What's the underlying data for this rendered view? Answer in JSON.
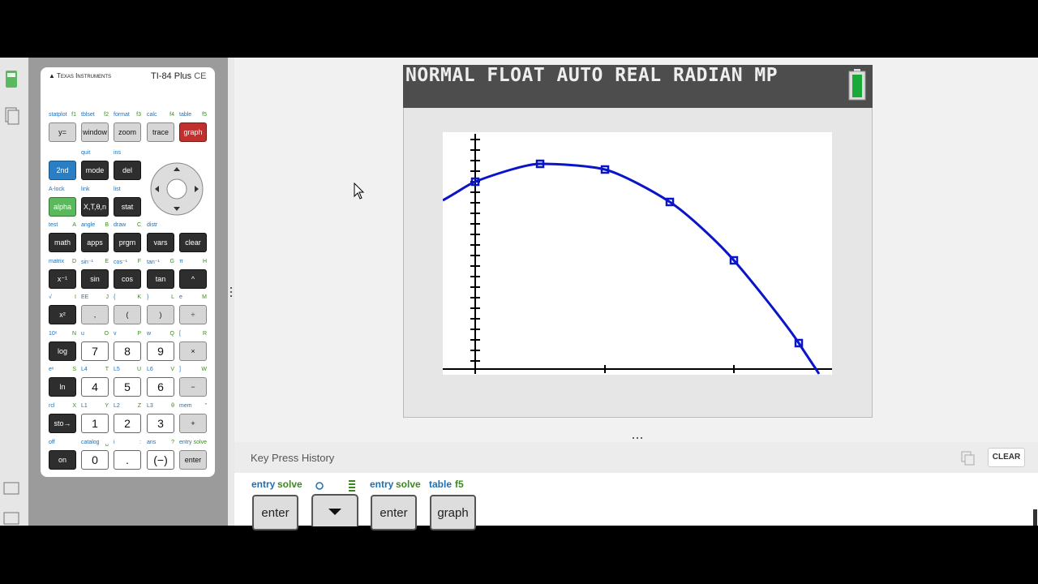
{
  "calculator": {
    "brand": "Texas Instruments",
    "model": "TI-84 Plus",
    "model_suffix": "CE",
    "rows": [
      {
        "keys": [
          {
            "second": "statplot",
            "alpha": "f1",
            "label": "y="
          },
          {
            "second": "tblset",
            "alpha": "f2",
            "label": "window"
          },
          {
            "second": "format",
            "alpha": "f3",
            "label": "zoom"
          },
          {
            "second": "calc",
            "alpha": "f4",
            "label": "trace"
          },
          {
            "second": "table",
            "alpha": "f5",
            "label": "graph"
          }
        ]
      },
      {
        "keys": [
          {
            "label": "2nd"
          },
          {
            "second": "quit",
            "label": "mode"
          },
          {
            "second": "ins",
            "label": "del"
          }
        ]
      },
      {
        "keys": [
          {
            "second": "A-lock",
            "label": "alpha"
          },
          {
            "second": "link",
            "label": "X,T,θ,n"
          },
          {
            "second": "list",
            "label": "stat"
          }
        ]
      },
      {
        "keys": [
          {
            "second": "test",
            "alpha": "A",
            "label": "math"
          },
          {
            "second": "angle",
            "alpha": "B",
            "label": "apps"
          },
          {
            "second": "draw",
            "alpha": "C",
            "label": "prgm"
          },
          {
            "second": "distr",
            "label": "vars"
          },
          {
            "label": "clear"
          }
        ]
      },
      {
        "keys": [
          {
            "second": "matrix",
            "alpha": "D",
            "label": "x⁻¹"
          },
          {
            "second": "sin⁻¹",
            "alpha": "E",
            "label": "sin"
          },
          {
            "second": "cos⁻¹",
            "alpha": "F",
            "label": "cos"
          },
          {
            "second": "tan⁻¹",
            "alpha": "G",
            "label": "tan"
          },
          {
            "second": "π",
            "alpha": "H",
            "label": "^"
          }
        ]
      },
      {
        "keys": [
          {
            "second": "√",
            "alpha": "I",
            "label": "x²"
          },
          {
            "second": "EE",
            "alpha": "J",
            "label": ","
          },
          {
            "second": "{",
            "alpha": "K",
            "label": "("
          },
          {
            "second": "}",
            "alpha": "L",
            "label": ")"
          },
          {
            "second": "e",
            "alpha": "M",
            "label": "÷"
          }
        ]
      },
      {
        "keys": [
          {
            "second": "10ˣ",
            "alpha": "N",
            "label": "log"
          },
          {
            "second": "u",
            "alpha": "O",
            "label": "7"
          },
          {
            "second": "v",
            "alpha": "P",
            "label": "8"
          },
          {
            "second": "w",
            "alpha": "Q",
            "label": "9"
          },
          {
            "second": "[",
            "alpha": "R",
            "label": "×"
          }
        ]
      },
      {
        "keys": [
          {
            "second": "eˣ",
            "alpha": "S",
            "label": "ln"
          },
          {
            "second": "L4",
            "alpha": "T",
            "label": "4"
          },
          {
            "second": "L5",
            "alpha": "U",
            "label": "5"
          },
          {
            "second": "L6",
            "alpha": "V",
            "label": "6"
          },
          {
            "second": "]",
            "alpha": "W",
            "label": "−"
          }
        ]
      },
      {
        "keys": [
          {
            "second": "rcl",
            "alpha": "X",
            "label": "sto→"
          },
          {
            "second": "L1",
            "alpha": "Y",
            "label": "1"
          },
          {
            "second": "L2",
            "alpha": "Z",
            "label": "2"
          },
          {
            "second": "L3",
            "alpha": "θ",
            "label": "3"
          },
          {
            "second": "mem",
            "alpha": "\"",
            "label": "+"
          }
        ]
      },
      {
        "keys": [
          {
            "second": "off",
            "label": "on"
          },
          {
            "second": "catalog",
            "alpha": "␣",
            "label": "0"
          },
          {
            "second": "i",
            "alpha": ":",
            "label": "."
          },
          {
            "second": "ans",
            "alpha": "?",
            "label": "(−)"
          },
          {
            "second": "entry",
            "alpha": "solve",
            "label": "enter"
          }
        ]
      }
    ]
  },
  "screen": {
    "status": "NORMAL FLOAT AUTO REAL RADIAN MP"
  },
  "history": {
    "title": "Key Press History",
    "clear_button": "CLEAR",
    "keys": [
      {
        "second": "entry",
        "alpha": "solve",
        "label": "enter"
      },
      {
        "second": "entry",
        "alpha": "solve",
        "label": "enter"
      },
      {
        "second": "table",
        "alpha": "f5",
        "label": "graph"
      }
    ]
  }
}
